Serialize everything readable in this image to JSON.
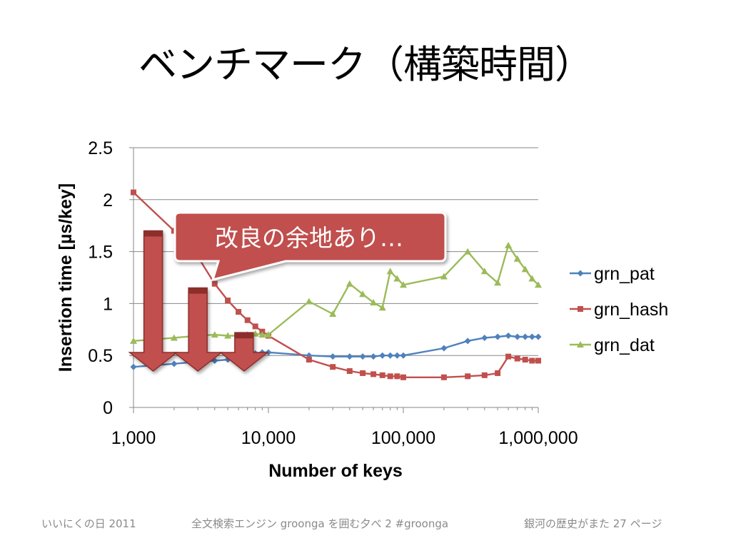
{
  "slide": {
    "title": "ベンチマーク（構築時間）",
    "footer_left": "いいにくの日 2011",
    "footer_center": "全文検索エンジン groonga を囲む夕べ 2  #groonga",
    "footer_right": "銀河の歴史がまた 27 ページ"
  },
  "callout": {
    "text": "改良の余地あり…",
    "color": "#c0504d"
  },
  "chart_data": {
    "type": "line",
    "xscale": "log",
    "xlabel": "Number of keys",
    "ylabel": "Insertion time [µs/key]",
    "xlim": [
      1000,
      1000000
    ],
    "ylim": [
      0,
      2.5
    ],
    "xticks": [
      1000,
      10000,
      100000,
      1000000
    ],
    "xtick_labels": [
      "1,000",
      "10,000",
      "100,000",
      "1,000,000"
    ],
    "yticks": [
      0,
      0.5,
      1,
      1.5,
      2,
      2.5
    ],
    "ytick_labels": [
      "0",
      "0.5",
      "1",
      "1.5",
      "2",
      "2.5"
    ],
    "grid": "horizontal",
    "legend_position": "right",
    "series": [
      {
        "name": "grn_pat",
        "color": "#4f81bd",
        "marker": "diamond",
        "x": [
          1000,
          2000,
          3000,
          4000,
          5000,
          6000,
          7000,
          8000,
          9000,
          10000,
          20000,
          30000,
          40000,
          50000,
          60000,
          70000,
          80000,
          90000,
          100000,
          200000,
          300000,
          400000,
          500000,
          600000,
          700000,
          800000,
          900000,
          1000000
        ],
        "y": [
          0.39,
          0.42,
          0.44,
          0.45,
          0.46,
          0.47,
          0.5,
          0.52,
          0.53,
          0.53,
          0.5,
          0.49,
          0.49,
          0.49,
          0.49,
          0.5,
          0.5,
          0.5,
          0.5,
          0.57,
          0.64,
          0.67,
          0.68,
          0.69,
          0.68,
          0.68,
          0.68,
          0.68
        ]
      },
      {
        "name": "grn_hash",
        "color": "#c0504d",
        "marker": "square",
        "x": [
          1000,
          2000,
          3000,
          4000,
          5000,
          6000,
          7000,
          8000,
          9000,
          10000,
          20000,
          30000,
          40000,
          50000,
          60000,
          70000,
          80000,
          90000,
          100000,
          200000,
          300000,
          400000,
          500000,
          600000,
          700000,
          800000,
          900000,
          1000000
        ],
        "y": [
          2.07,
          1.7,
          1.45,
          1.19,
          1.03,
          0.92,
          0.84,
          0.78,
          0.73,
          0.69,
          0.46,
          0.39,
          0.35,
          0.33,
          0.32,
          0.31,
          0.3,
          0.3,
          0.29,
          0.29,
          0.3,
          0.31,
          0.33,
          0.49,
          0.47,
          0.46,
          0.45,
          0.45
        ]
      },
      {
        "name": "grn_dat",
        "color": "#9bbb59",
        "marker": "triangle",
        "x": [
          1000,
          2000,
          3000,
          4000,
          5000,
          6000,
          7000,
          8000,
          9000,
          10000,
          20000,
          30000,
          40000,
          50000,
          60000,
          70000,
          80000,
          90000,
          100000,
          200000,
          300000,
          400000,
          500000,
          600000,
          700000,
          800000,
          900000,
          1000000
        ],
        "y": [
          0.64,
          0.67,
          0.69,
          0.7,
          0.69,
          0.69,
          0.7,
          0.71,
          0.7,
          0.7,
          1.02,
          0.9,
          1.19,
          1.09,
          1.01,
          0.96,
          1.31,
          1.24,
          1.18,
          1.26,
          1.5,
          1.31,
          1.2,
          1.56,
          1.43,
          1.33,
          1.24,
          1.18
        ]
      }
    ],
    "annotation_arrows": [
      {
        "x": 1400,
        "y_top": 1.7,
        "y_bottom": 0.35
      },
      {
        "x": 3000,
        "y_top": 1.15,
        "y_bottom": 0.35
      },
      {
        "x": 6600,
        "y_top": 0.72,
        "y_bottom": 0.35
      }
    ]
  }
}
